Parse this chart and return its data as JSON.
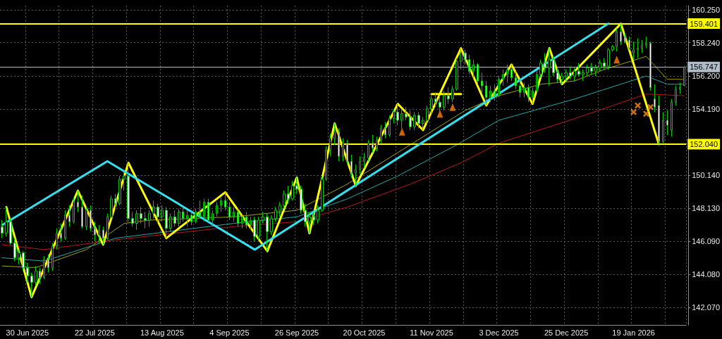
{
  "chart_data": {
    "type": "candlestick",
    "categories": [
      null,
      null,
      null,
      null,
      null,
      null,
      "30 Jun 2025",
      null,
      null,
      null,
      null,
      null,
      null,
      null,
      null,
      null,
      null,
      null,
      null,
      null,
      null,
      null,
      "22 Jul 2025",
      null,
      null,
      null,
      null,
      null,
      null,
      null,
      null,
      null,
      null,
      null,
      null,
      null,
      null,
      null,
      "13 Aug 2025",
      null,
      null,
      null,
      null,
      null,
      null,
      null,
      null,
      null,
      null,
      null,
      null,
      null,
      null,
      null,
      "4 Sep 2025",
      null,
      null,
      null,
      null,
      null,
      null,
      null,
      null,
      null,
      null,
      null,
      null,
      null,
      null,
      null,
      "26 Sep 2025",
      null,
      null,
      null,
      null,
      null,
      null,
      null,
      null,
      null,
      null,
      null,
      null,
      null,
      null,
      null,
      "20 Oct 2025",
      null,
      null,
      null,
      null,
      null,
      null,
      null,
      null,
      null,
      null,
      null,
      null,
      null,
      null,
      null,
      "11 Nov 2025",
      null,
      null,
      null,
      null,
      null,
      null,
      null,
      null,
      null,
      null,
      null,
      null,
      null,
      null,
      null,
      "3 Dec 2025",
      null,
      null,
      null,
      null,
      null,
      null,
      null,
      null,
      null,
      null,
      null,
      null,
      null,
      null,
      null,
      "25 Dec 2025",
      null,
      null,
      null,
      null,
      null,
      null,
      null,
      null,
      null,
      null,
      null,
      null,
      null,
      null,
      null,
      "19 Jan 2026",
      null,
      null,
      null,
      null,
      null,
      null,
      null,
      null,
      null,
      null,
      null,
      null
    ],
    "ohlc": [
      [
        147.0,
        147.4,
        146.3,
        146.6
      ],
      [
        146.6,
        148.2,
        146.4,
        147.3
      ],
      [
        147.3,
        147.5,
        145.9,
        146.0
      ],
      [
        146.0,
        146.3,
        144.9,
        145.1
      ],
      [
        145.1,
        145.6,
        144.7,
        145.4
      ],
      [
        145.4,
        145.5,
        144.3,
        144.5
      ],
      [
        144.5,
        144.8,
        143.6,
        144.0
      ],
      [
        144.0,
        144.2,
        142.7,
        143.6
      ],
      [
        143.6,
        144.6,
        143.4,
        144.3
      ],
      [
        144.3,
        144.5,
        143.5,
        143.9
      ],
      [
        143.9,
        145.2,
        143.8,
        145.0
      ],
      [
        145.0,
        145.3,
        144.2,
        144.5
      ],
      [
        144.5,
        146.0,
        144.3,
        145.8
      ],
      [
        145.8,
        146.9,
        145.6,
        146.6
      ],
      [
        146.6,
        147.2,
        146.1,
        146.3
      ],
      [
        146.3,
        148.0,
        146.2,
        147.7
      ],
      [
        147.7,
        148.3,
        147.0,
        147.3
      ],
      [
        147.3,
        148.8,
        147.2,
        148.5
      ],
      [
        148.5,
        149.2,
        147.9,
        148.2
      ],
      [
        148.2,
        148.9,
        146.9,
        147.0
      ],
      [
        147.0,
        148.2,
        146.8,
        148.0
      ],
      [
        148.0,
        148.3,
        146.7,
        146.9
      ],
      [
        146.9,
        147.3,
        146.1,
        146.5
      ],
      [
        146.5,
        147.1,
        146.0,
        146.8
      ],
      [
        146.8,
        147.0,
        145.9,
        146.3
      ],
      [
        146.3,
        147.8,
        146.2,
        147.6
      ],
      [
        147.6,
        148.9,
        147.5,
        148.7
      ],
      [
        148.7,
        149.0,
        148.1,
        148.4
      ],
      [
        148.4,
        150.1,
        148.3,
        149.9
      ],
      [
        149.9,
        150.3,
        149.2,
        150.1
      ],
      [
        150.1,
        150.9,
        147.3,
        147.5
      ],
      [
        147.5,
        147.9,
        147.0,
        147.2
      ],
      [
        147.2,
        148.0,
        146.8,
        147.8
      ],
      [
        147.8,
        148.2,
        147.2,
        147.5
      ],
      [
        147.5,
        147.9,
        146.9,
        147.4
      ],
      [
        147.4,
        148.0,
        147.0,
        147.8
      ],
      [
        147.8,
        148.6,
        147.5,
        148.2
      ],
      [
        148.2,
        148.4,
        147.2,
        147.6
      ],
      [
        147.6,
        148.3,
        147.3,
        148.0
      ],
      [
        148.0,
        148.2,
        146.3,
        146.9
      ],
      [
        146.9,
        147.8,
        146.7,
        147.6
      ],
      [
        147.6,
        148.0,
        147.0,
        147.2
      ],
      [
        147.2,
        148.1,
        147.0,
        147.9
      ],
      [
        147.9,
        148.2,
        147.3,
        147.5
      ],
      [
        147.5,
        148.0,
        147.0,
        147.7
      ],
      [
        147.7,
        147.9,
        147.1,
        147.3
      ],
      [
        147.3,
        148.1,
        147.2,
        147.9
      ],
      [
        147.9,
        148.6,
        147.5,
        147.6
      ],
      [
        147.6,
        148.7,
        147.3,
        148.5
      ],
      [
        148.5,
        148.7,
        147.3,
        147.4
      ],
      [
        147.4,
        148.0,
        147.1,
        147.8
      ],
      [
        147.8,
        148.5,
        147.6,
        148.3
      ],
      [
        148.3,
        148.8,
        147.9,
        148.6
      ],
      [
        148.6,
        149.1,
        148.0,
        148.2
      ],
      [
        148.2,
        148.5,
        147.4,
        147.6
      ],
      [
        147.6,
        148.2,
        147.3,
        147.9
      ],
      [
        147.9,
        148.1,
        147.0,
        147.2
      ],
      [
        147.2,
        147.8,
        146.9,
        147.6
      ],
      [
        147.6,
        147.9,
        146.9,
        147.1
      ],
      [
        147.1,
        147.6,
        146.8,
        147.4
      ],
      [
        147.4,
        147.6,
        146.1,
        146.4
      ],
      [
        146.4,
        147.6,
        146.2,
        147.4
      ],
      [
        147.4,
        147.9,
        147.2,
        147.6
      ],
      [
        147.6,
        147.8,
        145.5,
        146.7
      ],
      [
        146.7,
        147.7,
        146.5,
        147.5
      ],
      [
        147.5,
        148.2,
        147.3,
        148.0
      ],
      [
        148.0,
        148.5,
        147.6,
        148.3
      ],
      [
        148.3,
        149.2,
        148.1,
        149.0
      ],
      [
        149.0,
        149.5,
        148.4,
        148.7
      ],
      [
        148.7,
        149.8,
        148.6,
        149.5
      ],
      [
        149.5,
        150.0,
        149.0,
        149.3
      ],
      [
        149.3,
        149.5,
        147.8,
        148.0
      ],
      [
        148.0,
        148.4,
        147.0,
        147.3
      ],
      [
        147.3,
        147.9,
        146.6,
        147.6
      ],
      [
        147.6,
        147.9,
        147.1,
        147.4
      ],
      [
        147.4,
        148.3,
        147.2,
        148.0
      ],
      [
        148.0,
        150.1,
        147.9,
        149.9
      ],
      [
        149.9,
        151.9,
        149.8,
        151.7
      ],
      [
        151.7,
        152.7,
        151.3,
        152.4
      ],
      [
        152.4,
        153.3,
        152.0,
        152.8
      ],
      [
        152.8,
        153.0,
        151.0,
        151.3
      ],
      [
        151.3,
        152.4,
        151.0,
        152.1
      ],
      [
        152.1,
        152.3,
        150.8,
        151.0
      ],
      [
        151.0,
        151.4,
        150.0,
        150.3
      ],
      [
        150.3,
        150.8,
        149.5,
        150.5
      ],
      [
        150.5,
        151.3,
        150.2,
        151.0
      ],
      [
        151.0,
        151.5,
        150.6,
        151.2
      ],
      [
        151.2,
        152.3,
        151.0,
        152.1
      ],
      [
        152.1,
        152.6,
        151.5,
        151.8
      ],
      [
        151.8,
        152.5,
        151.6,
        152.3
      ],
      [
        152.3,
        153.2,
        152.1,
        153.0
      ],
      [
        153.0,
        153.4,
        152.4,
        152.6
      ],
      [
        152.6,
        153.8,
        152.5,
        153.6
      ],
      [
        153.6,
        154.2,
        153.3,
        154.0
      ],
      [
        154.0,
        154.5,
        153.2,
        153.5
      ],
      [
        153.5,
        154.2,
        153.0,
        153.9
      ],
      [
        153.9,
        154.3,
        153.5,
        153.7
      ],
      [
        153.7,
        154.1,
        152.9,
        153.1
      ],
      [
        153.1,
        154.0,
        152.9,
        153.8
      ],
      [
        153.8,
        154.0,
        153.0,
        153.3
      ],
      [
        153.3,
        153.7,
        152.9,
        153.5
      ],
      [
        153.5,
        154.4,
        153.3,
        154.2
      ],
      [
        154.2,
        155.1,
        153.9,
        154.8
      ],
      [
        154.8,
        155.2,
        154.3,
        154.6
      ],
      [
        154.6,
        155.0,
        153.9,
        154.3
      ],
      [
        154.3,
        155.3,
        154.1,
        155.0
      ],
      [
        155.0,
        155.5,
        154.5,
        154.8
      ],
      [
        154.8,
        155.6,
        154.6,
        155.4
      ],
      [
        155.4,
        157.3,
        155.3,
        157.1
      ],
      [
        157.1,
        157.9,
        156.6,
        157.6
      ],
      [
        157.6,
        157.8,
        156.9,
        157.2
      ],
      [
        157.2,
        157.5,
        156.3,
        156.5
      ],
      [
        156.5,
        157.2,
        156.1,
        156.9
      ],
      [
        156.9,
        157.0,
        155.7,
        155.9
      ],
      [
        155.9,
        156.4,
        155.2,
        155.6
      ],
      [
        155.6,
        155.9,
        154.4,
        154.9
      ],
      [
        154.9,
        155.6,
        154.6,
        155.3
      ],
      [
        155.3,
        155.7,
        154.7,
        155.0
      ],
      [
        155.0,
        156.2,
        154.9,
        156.0
      ],
      [
        156.0,
        156.6,
        155.6,
        156.3
      ],
      [
        156.3,
        156.9,
        155.8,
        156.6
      ],
      [
        156.6,
        156.9,
        155.9,
        156.1
      ],
      [
        156.1,
        156.5,
        155.4,
        155.6
      ],
      [
        155.6,
        156.0,
        154.9,
        155.2
      ],
      [
        155.2,
        155.8,
        154.9,
        155.5
      ],
      [
        155.5,
        155.7,
        154.6,
        154.9
      ],
      [
        154.9,
        155.5,
        154.5,
        155.3
      ],
      [
        155.3,
        156.5,
        155.2,
        156.3
      ],
      [
        156.3,
        157.2,
        156.1,
        157.0
      ],
      [
        157.0,
        157.6,
        156.4,
        156.7
      ],
      [
        156.7,
        157.9,
        155.6,
        157.2
      ],
      [
        157.2,
        157.4,
        156.2,
        156.4
      ],
      [
        156.4,
        156.7,
        155.8,
        156.0
      ],
      [
        156.0,
        156.4,
        155.7,
        156.2
      ],
      [
        156.2,
        156.6,
        155.9,
        156.4
      ],
      [
        156.4,
        156.8,
        156.0,
        156.2
      ],
      [
        156.2,
        156.7,
        155.9,
        156.5
      ],
      [
        156.5,
        157.0,
        156.2,
        156.3
      ],
      [
        156.3,
        156.6,
        155.9,
        156.4
      ],
      [
        156.4,
        156.9,
        156.2,
        156.7
      ],
      [
        156.7,
        157.0,
        156.3,
        156.5
      ],
      [
        156.5,
        156.9,
        156.2,
        156.7
      ],
      [
        156.7,
        157.2,
        156.5,
        157.0
      ],
      [
        157.0,
        157.3,
        156.6,
        156.8
      ],
      [
        156.8,
        157.9,
        156.6,
        157.8
      ],
      [
        157.8,
        158.1,
        157.7,
        158.0
      ],
      [
        158.0,
        159.1,
        157.7,
        158.9
      ],
      [
        158.9,
        159.4,
        158.1,
        158.3
      ],
      [
        158.6,
        158.8,
        158.2,
        158.3
      ],
      [
        158.4,
        158.6,
        157.8,
        157.9
      ],
      [
        157.6,
        158.3,
        157.2,
        157.8
      ],
      [
        157.8,
        158.5,
        157.3,
        157.9
      ],
      [
        157.9,
        158.4,
        157.6,
        158.1
      ],
      [
        158.1,
        158.6,
        157.9,
        158.2
      ],
      [
        158.2,
        158.3,
        155.3,
        155.5
      ],
      [
        154.8,
        155.7,
        154.0,
        154.3
      ],
      [
        154.4,
        155.0,
        152.04,
        152.2
      ],
      [
        152.2,
        154.0,
        152.1,
        153.5
      ],
      [
        153.5,
        154.1,
        152.6,
        153.2
      ],
      [
        152.9,
        154.8,
        152.5,
        154.6
      ],
      [
        154.6,
        155.6,
        154.4,
        155.4
      ],
      [
        155.4,
        155.8,
        155.1,
        155.5
      ],
      [
        155.6,
        156.8,
        155.6,
        156.747
      ]
    ],
    "series": [
      {
        "type": "line",
        "color": "#ffff00",
        "values": [
          null,
          148.2,
          null,
          null,
          null,
          null,
          null,
          142.7,
          null,
          null,
          null,
          null,
          null,
          null,
          null,
          null,
          null,
          null,
          149.2,
          null,
          null,
          null,
          null,
          null,
          145.9,
          null,
          null,
          null,
          null,
          null,
          150.9,
          null,
          null,
          null,
          null,
          null,
          null,
          null,
          null,
          146.3,
          null,
          null,
          null,
          null,
          null,
          null,
          null,
          null,
          null,
          null,
          null,
          null,
          null,
          149.1,
          null,
          null,
          null,
          null,
          null,
          null,
          null,
          null,
          null,
          145.5,
          null,
          null,
          null,
          null,
          null,
          null,
          150.0,
          null,
          null,
          146.6,
          null,
          null,
          null,
          null,
          null,
          153.3,
          null,
          null,
          null,
          null,
          149.5,
          null,
          null,
          null,
          null,
          null,
          null,
          null,
          null,
          null,
          154.5,
          null,
          null,
          null,
          null,
          null,
          152.9,
          null,
          null,
          null,
          null,
          null,
          null,
          null,
          null,
          157.9,
          null,
          null,
          null,
          null,
          null,
          154.4,
          null,
          null,
          null,
          null,
          null,
          156.9,
          null,
          null,
          null,
          null,
          154.5,
          null,
          null,
          null,
          157.9,
          null,
          null,
          155.7,
          null,
          null,
          null,
          null,
          null,
          null,
          null,
          null,
          null,
          null,
          null,
          null,
          null,
          159.4,
          null,
          null,
          null,
          null,
          null,
          null,
          null,
          null,
          152.04,
          null,
          null,
          null,
          null,
          null,
          null
        ]
      },
      {
        "type": "line",
        "color": "#33e0ee",
        "values": [
          147.1,
          null,
          null,
          null,
          null,
          null,
          null,
          null,
          null,
          null,
          null,
          null,
          null,
          null,
          null,
          null,
          null,
          null,
          null,
          null,
          null,
          null,
          null,
          null,
          null,
          151.0,
          null,
          null,
          null,
          null,
          null,
          null,
          null,
          null,
          null,
          null,
          null,
          null,
          null,
          null,
          null,
          null,
          null,
          null,
          null,
          null,
          null,
          null,
          null,
          null,
          null,
          null,
          null,
          null,
          null,
          null,
          null,
          null,
          null,
          null,
          145.6,
          null,
          null,
          null,
          null,
          null,
          null,
          null,
          null,
          null,
          null,
          null,
          null,
          null,
          null,
          null,
          null,
          null,
          null,
          null,
          null,
          null,
          null,
          null,
          null,
          null,
          null,
          null,
          null,
          null,
          null,
          null,
          null,
          null,
          null,
          null,
          null,
          null,
          null,
          null,
          null,
          null,
          null,
          null,
          null,
          null,
          null,
          null,
          null,
          null,
          null,
          null,
          null,
          null,
          null,
          null,
          null,
          null,
          null,
          null,
          null,
          null,
          null,
          null,
          null,
          null,
          null,
          null,
          null,
          null,
          null,
          null,
          null,
          null,
          null,
          null,
          null,
          null,
          null,
          null,
          null,
          null,
          null,
          null,
          159.4,
          null,
          null,
          null,
          null,
          null,
          null,
          null,
          null,
          null,
          null,
          null,
          null,
          null,
          null,
          null,
          null,
          null,
          null
        ]
      },
      {
        "type": "line",
        "color": "#ffff00",
        "values": [
          null,
          null,
          null,
          null,
          null,
          null,
          null,
          null,
          null,
          null,
          null,
          null,
          null,
          null,
          null,
          null,
          null,
          null,
          null,
          null,
          null,
          null,
          null,
          null,
          null,
          null,
          null,
          null,
          null,
          null,
          null,
          null,
          null,
          null,
          null,
          null,
          null,
          null,
          null,
          null,
          null,
          null,
          null,
          null,
          null,
          null,
          null,
          null,
          null,
          null,
          null,
          null,
          null,
          null,
          null,
          null,
          null,
          null,
          null,
          null,
          null,
          null,
          null,
          null,
          null,
          null,
          null,
          null,
          null,
          null,
          null,
          null,
          null,
          null,
          null,
          null,
          null,
          null,
          null,
          null,
          null,
          null,
          null,
          null,
          null,
          null,
          null,
          null,
          null,
          null,
          null,
          null,
          null,
          null,
          null,
          null,
          null,
          null,
          null,
          null,
          null,
          null,
          155.1,
          null,
          null,
          null,
          null,
          null,
          null,
          155.1,
          null,
          null,
          null,
          null,
          null,
          null,
          null,
          null,
          null,
          null,
          null,
          null,
          null,
          null,
          null,
          null,
          null,
          null,
          null,
          null,
          null,
          null,
          null,
          null,
          null,
          null,
          null,
          null,
          null,
          null,
          null,
          null,
          null,
          null,
          null,
          null,
          null,
          null,
          null,
          null,
          null,
          null,
          null,
          null,
          null,
          null,
          null,
          null,
          null,
          null,
          null,
          null,
          null
        ]
      },
      {
        "type": "line",
        "color": "#a0a000",
        "values": [
          144.6,
          null,
          null,
          null,
          null,
          null,
          null,
          null,
          144.5,
          null,
          null,
          null,
          null,
          null,
          null,
          null,
          null,
          null,
          null,
          null,
          145.6,
          null,
          null,
          null,
          null,
          null,
          null,
          null,
          null,
          147.2,
          null,
          null,
          null,
          null,
          null,
          147.4,
          null,
          null,
          null,
          null,
          null,
          null,
          null,
          null,
          null,
          null,
          null,
          null,
          null,
          null,
          null,
          null,
          null,
          null,
          null,
          147.6,
          null,
          null,
          null,
          null,
          null,
          null,
          null,
          null,
          null,
          null,
          null,
          null,
          null,
          null,
          148.0,
          null,
          null,
          null,
          null,
          null,
          null,
          null,
          null,
          null,
          null,
          null,
          149.6,
          null,
          null,
          null,
          null,
          null,
          null,
          null,
          null,
          null,
          null,
          null,
          null,
          null,
          null,
          null,
          null,
          null,
          null,
          null,
          null,
          null,
          null,
          null,
          null,
          null,
          null,
          null,
          154.1,
          null,
          null,
          null,
          null,
          null,
          null,
          null,
          155.0,
          null,
          null,
          null,
          null,
          null,
          null,
          null,
          null,
          null,
          155.7,
          null,
          null,
          null,
          null,
          null,
          null,
          null,
          155.9,
          null,
          null,
          null,
          null,
          null,
          null,
          156.6,
          null,
          null,
          null,
          null,
          null,
          null,
          null,
          null,
          null,
          157.4,
          null,
          null,
          null,
          null,
          156.0,
          null,
          null,
          null,
          156.0
        ]
      },
      {
        "type": "line",
        "color": "#20a8a8",
        "values": [
          145.1,
          null,
          null,
          null,
          null,
          null,
          null,
          null,
          null,
          null,
          144.9,
          null,
          null,
          null,
          null,
          null,
          null,
          null,
          null,
          null,
          null,
          null,
          null,
          null,
          null,
          null,
          null,
          146.3,
          null,
          null,
          null,
          null,
          null,
          null,
          null,
          null,
          null,
          null,
          null,
          null,
          null,
          null,
          null,
          null,
          null,
          null,
          null,
          null,
          null,
          null,
          null,
          null,
          null,
          null,
          null,
          147.2,
          null,
          null,
          null,
          null,
          null,
          null,
          null,
          null,
          null,
          null,
          null,
          null,
          null,
          null,
          147.6,
          null,
          null,
          null,
          null,
          null,
          null,
          null,
          null,
          null,
          null,
          null,
          148.7,
          null,
          null,
          null,
          null,
          null,
          null,
          null,
          null,
          null,
          null,
          null,
          150.1,
          null,
          null,
          null,
          null,
          null,
          null,
          null,
          null,
          null,
          null,
          null,
          null,
          null,
          152.0,
          null,
          null,
          null,
          null,
          null,
          null,
          null,
          null,
          null,
          153.5,
          null,
          null,
          null,
          null,
          null,
          null,
          null,
          null,
          null,
          null,
          null,
          null,
          null,
          null,
          null,
          null,
          null,
          154.8,
          null,
          null,
          null,
          null,
          null,
          null,
          null,
          null,
          null,
          null,
          null,
          null,
          null,
          null,
          null,
          null,
          156.2,
          null,
          null,
          null,
          null,
          155.7,
          null,
          null,
          null,
          155.7
        ]
      },
      {
        "type": "line",
        "color": "#b81818",
        "values": [
          145.9,
          null,
          null,
          null,
          null,
          null,
          null,
          null,
          null,
          null,
          145.6,
          null,
          null,
          null,
          null,
          null,
          null,
          null,
          null,
          null,
          null,
          null,
          null,
          null,
          null,
          null,
          null,
          146.2,
          null,
          null,
          null,
          null,
          null,
          null,
          null,
          null,
          null,
          null,
          null,
          null,
          null,
          null,
          null,
          null,
          null,
          null,
          null,
          null,
          null,
          null,
          null,
          null,
          null,
          null,
          null,
          147.0,
          null,
          null,
          null,
          null,
          null,
          null,
          null,
          null,
          null,
          null,
          null,
          null,
          null,
          null,
          147.3,
          null,
          null,
          null,
          null,
          null,
          null,
          null,
          null,
          null,
          null,
          null,
          148.2,
          null,
          null,
          null,
          null,
          null,
          null,
          null,
          null,
          null,
          null,
          null,
          null,
          null,
          null,
          149.6,
          null,
          null,
          null,
          null,
          null,
          null,
          null,
          null,
          null,
          null,
          null,
          150.9,
          null,
          null,
          null,
          null,
          null,
          null,
          null,
          null,
          152.1,
          null,
          null,
          null,
          null,
          null,
          null,
          null,
          null,
          null,
          null,
          null,
          null,
          null,
          null,
          null,
          null,
          null,
          153.6,
          null,
          null,
          null,
          null,
          null,
          null,
          null,
          null,
          null,
          null,
          null,
          null,
          null,
          null,
          null,
          null,
          155.1,
          null,
          null,
          null,
          null,
          null,
          null,
          null,
          null,
          155.0
        ]
      },
      {
        "type": "scatter",
        "color": "#ff8000",
        "marker": "triangle",
        "values": [
          null,
          null,
          null,
          null,
          null,
          null,
          null,
          null,
          null,
          null,
          null,
          null,
          null,
          null,
          null,
          null,
          null,
          null,
          null,
          null,
          null,
          null,
          null,
          null,
          null,
          null,
          null,
          null,
          null,
          null,
          null,
          null,
          null,
          null,
          null,
          null,
          null,
          null,
          null,
          null,
          null,
          null,
          null,
          null,
          null,
          null,
          null,
          null,
          null,
          null,
          null,
          null,
          null,
          null,
          null,
          null,
          null,
          null,
          null,
          null,
          null,
          null,
          null,
          null,
          null,
          null,
          null,
          null,
          null,
          null,
          null,
          null,
          null,
          null,
          null,
          null,
          null,
          null,
          null,
          null,
          null,
          null,
          null,
          null,
          null,
          null,
          null,
          null,
          null,
          null,
          null,
          null,
          null,
          null,
          null,
          152.8,
          null,
          null,
          null,
          null,
          null,
          null,
          null,
          null,
          153.9,
          null,
          null,
          154.3,
          null,
          null,
          null,
          null,
          null,
          null,
          null,
          null,
          null,
          null,
          null,
          null,
          null,
          null,
          null,
          null,
          null,
          null,
          null,
          null,
          null,
          null,
          null,
          null,
          null,
          null,
          null,
          null,
          null,
          null,
          null,
          null,
          null,
          null,
          null,
          null,
          null,
          null,
          157.2,
          null,
          null,
          null,
          null,
          null,
          null,
          null,
          null,
          null,
          null,
          null,
          null,
          null,
          null,
          null,
          null
        ]
      },
      {
        "type": "scatter",
        "color": "#ff8c1a",
        "marker": "cross",
        "values": [
          null,
          null,
          null,
          null,
          null,
          null,
          null,
          null,
          null,
          null,
          null,
          null,
          null,
          null,
          null,
          null,
          null,
          null,
          null,
          null,
          null,
          null,
          null,
          null,
          null,
          null,
          null,
          null,
          null,
          null,
          null,
          null,
          null,
          null,
          null,
          null,
          null,
          null,
          null,
          null,
          null,
          null,
          null,
          null,
          null,
          null,
          null,
          null,
          null,
          null,
          null,
          null,
          null,
          null,
          null,
          null,
          null,
          null,
          null,
          null,
          null,
          null,
          null,
          null,
          null,
          null,
          null,
          null,
          null,
          null,
          null,
          null,
          null,
          null,
          null,
          null,
          null,
          null,
          null,
          null,
          null,
          null,
          null,
          null,
          null,
          null,
          null,
          null,
          null,
          null,
          null,
          null,
          null,
          null,
          null,
          null,
          null,
          null,
          null,
          null,
          null,
          null,
          null,
          null,
          null,
          null,
          null,
          null,
          null,
          null,
          null,
          null,
          null,
          null,
          null,
          null,
          null,
          null,
          null,
          null,
          null,
          null,
          null,
          null,
          null,
          null,
          null,
          null,
          null,
          null,
          null,
          null,
          null,
          null,
          null,
          null,
          null,
          null,
          null,
          null,
          null,
          null,
          null,
          null,
          null,
          null,
          null,
          null,
          null,
          null,
          154.0,
          154.4,
          null,
          153.9,
          154.3,
          null,
          null,
          null,
          null,
          null,
          null,
          null,
          null
        ]
      }
    ],
    "ylim": [
      141.0,
      160.5
    ],
    "yticks": [
      {
        "value": 142.07,
        "label": "142.070"
      },
      {
        "value": 144.08,
        "label": "144.080"
      },
      {
        "value": 146.09,
        "label": "146.090"
      },
      {
        "value": 148.13,
        "label": "148.130"
      },
      {
        "value": 150.14,
        "label": "150.140"
      },
      {
        "value": 154.19,
        "label": "154.190"
      },
      {
        "value": 156.2,
        "label": "156.200"
      },
      {
        "value": 158.24,
        "label": "158.240"
      },
      {
        "value": 160.25,
        "label": "160.250"
      }
    ],
    "ref_lines": [
      {
        "axis": "y",
        "value": 159.401,
        "label": "159.401",
        "color": "#ffff00"
      },
      {
        "axis": "y",
        "value": 152.04,
        "label": "152.040",
        "color": "#ffff00"
      },
      {
        "axis": "y",
        "value": 156.747,
        "label": "156.747",
        "color": "#b0bcc8"
      }
    ],
    "grid": true,
    "marker": "none"
  }
}
